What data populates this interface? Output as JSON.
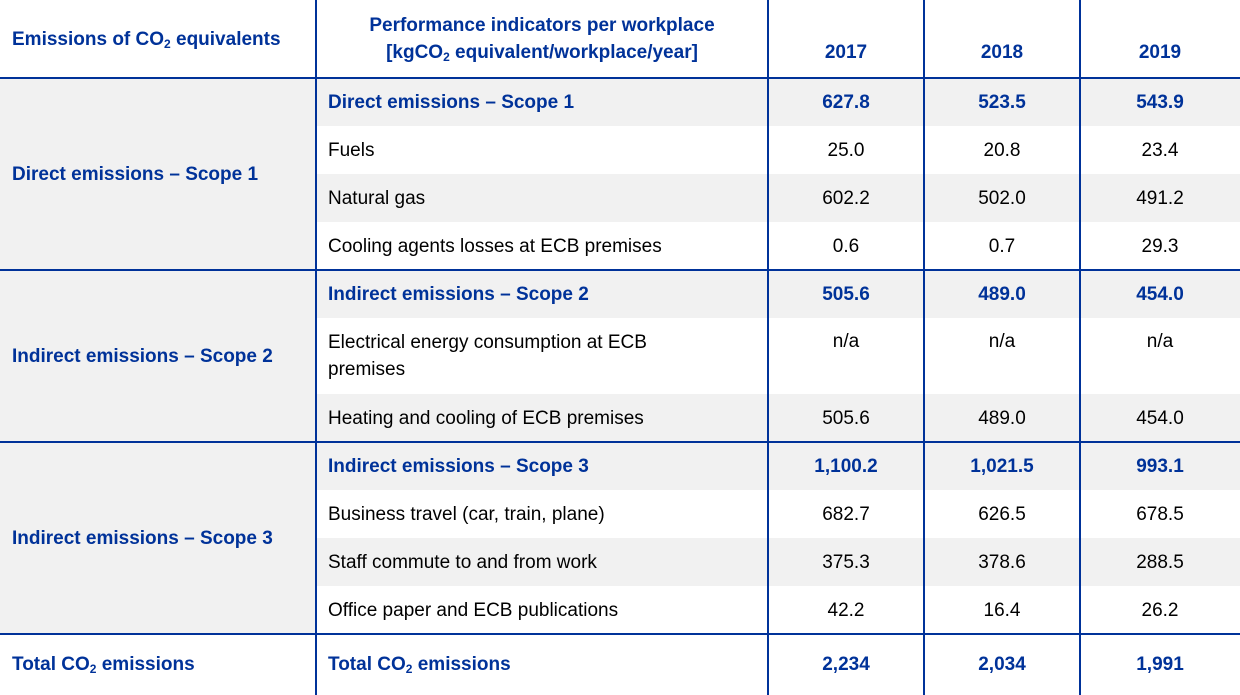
{
  "headers": {
    "col1": "Emissions of CO₂ equivalents",
    "col2": "Performance indicators per workplace [kgCO₂ equivalent/workplace/year]",
    "years": [
      "2017",
      "2018",
      "2019"
    ]
  },
  "groups": [
    {
      "label": "Direct emissions – Scope 1",
      "rows": [
        {
          "indicator": "Direct emissions – Scope 1",
          "values": [
            "627.8",
            "523.5",
            "543.9"
          ],
          "subtotal": true
        },
        {
          "indicator": "Fuels",
          "values": [
            "25.0",
            "20.8",
            "23.4"
          ]
        },
        {
          "indicator": "Natural gas",
          "values": [
            "602.2",
            "502.0",
            "491.2"
          ]
        },
        {
          "indicator": "Cooling agents losses at ECB premises",
          "values": [
            "0.6",
            "0.7",
            "29.3"
          ]
        }
      ]
    },
    {
      "label": "Indirect emissions – Scope 2",
      "rows": [
        {
          "indicator": "Indirect emissions – Scope 2",
          "values": [
            "505.6",
            "489.0",
            "454.0"
          ],
          "subtotal": true
        },
        {
          "indicator": "Electrical energy consumption at ECB premises",
          "values": [
            "n/a",
            "n/a",
            "n/a"
          ]
        },
        {
          "indicator": "Heating and cooling of ECB premises",
          "values": [
            "505.6",
            "489.0",
            "454.0"
          ]
        }
      ]
    },
    {
      "label": "Indirect emissions – Scope 3",
      "rows": [
        {
          "indicator": "Indirect emissions – Scope 3",
          "values": [
            "1,100.2",
            "1,021.5",
            "993.1"
          ],
          "subtotal": true
        },
        {
          "indicator": "Business travel (car, train, plane)",
          "values": [
            "682.7",
            "626.5",
            "678.5"
          ]
        },
        {
          "indicator": "Staff commute to and from work",
          "values": [
            "375.3",
            "378.6",
            "288.5"
          ]
        },
        {
          "indicator": "Office paper and ECB publications",
          "values": [
            "42.2",
            "16.4",
            "26.2"
          ]
        }
      ]
    }
  ],
  "total": {
    "label": "Total CO₂ emissions",
    "indicator": "Total CO₂ emissions",
    "values": [
      "2,234",
      "2,034",
      "1,991"
    ]
  },
  "colors": {
    "accent": "#003299",
    "shade": "#f1f1f1"
  }
}
